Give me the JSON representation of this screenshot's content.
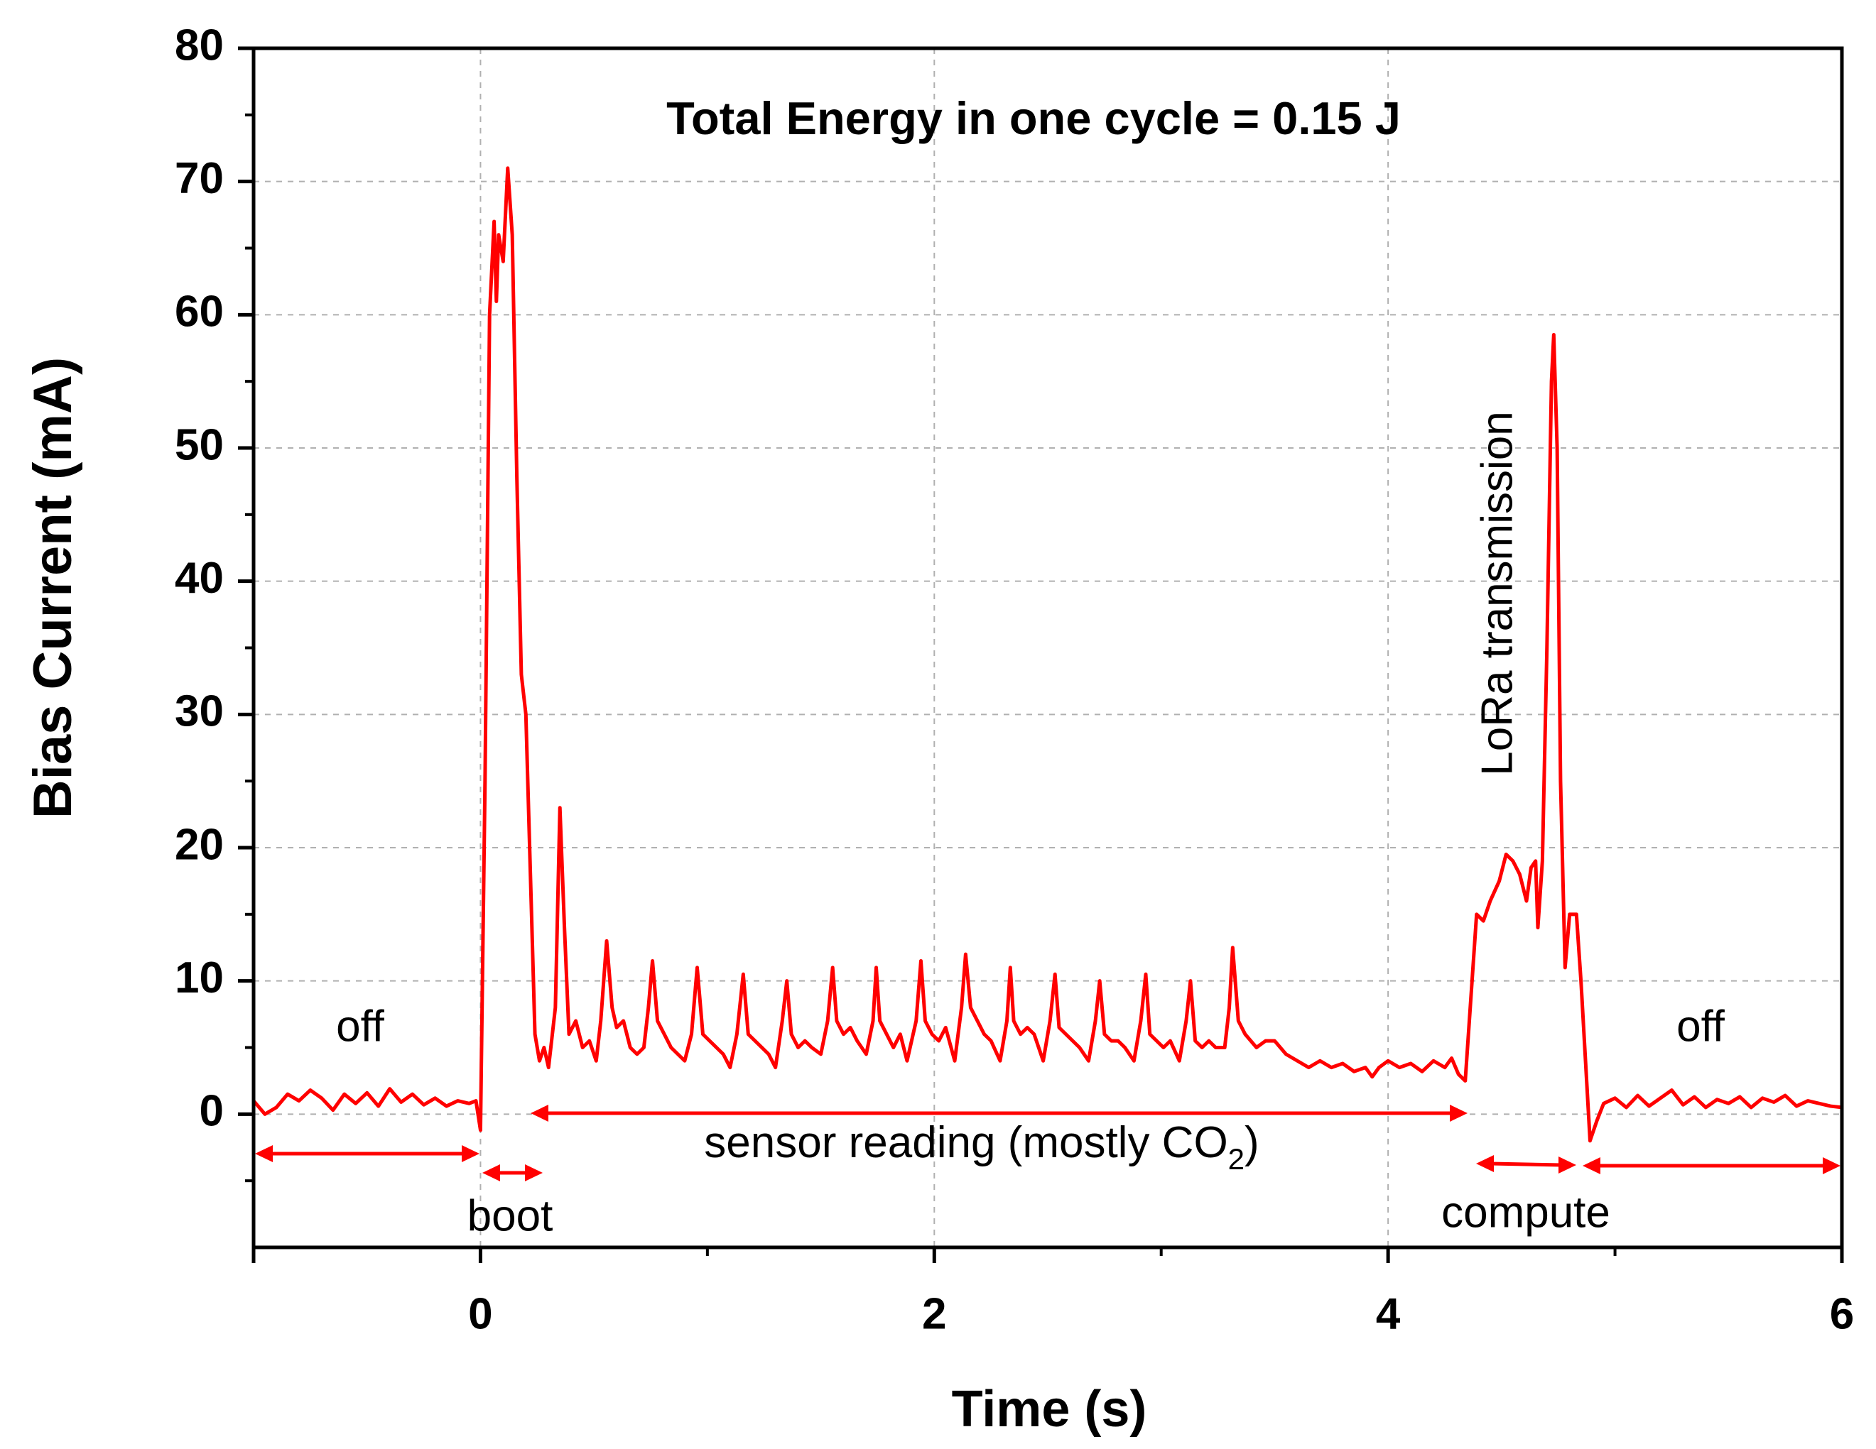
{
  "chart_data": {
    "type": "line",
    "title": "Total Energy in one cycle = 0.15 J",
    "x_label": "Time (s)",
    "y_label": "Bias Current (mA)",
    "annotations": {
      "off_left": "off",
      "boot": "boot",
      "sensor": [
        "sensor reading (mostly CO",
        "2",
        ")"
      ],
      "compute": "compute",
      "lora": "LoRa transmission",
      "off_right": "off"
    },
    "xlim": [
      -1,
      6
    ],
    "xticks": [
      0,
      2,
      4,
      6
    ],
    "ylim": [
      -10,
      80
    ],
    "yticks": [
      0,
      10,
      20,
      30,
      40,
      50,
      60,
      70,
      80
    ],
    "grid": true,
    "x": [
      -1,
      -0.95,
      -0.9,
      -0.85,
      -0.8,
      -0.75,
      -0.7,
      -0.65,
      -0.6,
      -0.55,
      -0.5,
      -0.45,
      -0.4,
      -0.35,
      -0.3,
      -0.25,
      -0.2,
      -0.15,
      -0.1,
      -0.05,
      -0.02,
      0,
      0.02,
      0.04,
      0.06,
      0.07,
      0.08,
      0.1,
      0.12,
      0.14,
      0.16,
      0.18,
      0.2,
      0.22,
      0.24,
      0.26,
      0.28,
      0.3,
      0.33,
      0.35,
      0.37,
      0.39,
      0.42,
      0.45,
      0.48,
      0.51,
      0.53,
      0.556,
      0.58,
      0.6,
      0.63,
      0.66,
      0.69,
      0.72,
      0.74,
      0.758,
      0.78,
      0.81,
      0.84,
      0.87,
      0.9,
      0.93,
      0.955,
      0.98,
      1.01,
      1.04,
      1.07,
      1.1,
      1.13,
      1.158,
      1.18,
      1.21,
      1.24,
      1.27,
      1.3,
      1.33,
      1.35,
      1.37,
      1.4,
      1.43,
      1.46,
      1.5,
      1.53,
      1.552,
      1.57,
      1.6,
      1.63,
      1.66,
      1.7,
      1.73,
      1.744,
      1.76,
      1.79,
      1.82,
      1.85,
      1.88,
      1.92,
      1.941,
      1.96,
      1.99,
      2.02,
      2.05,
      2.09,
      2.12,
      2.138,
      2.16,
      2.19,
      2.22,
      2.25,
      2.29,
      2.32,
      2.335,
      2.35,
      2.38,
      2.41,
      2.44,
      2.48,
      2.51,
      2.532,
      2.55,
      2.58,
      2.61,
      2.64,
      2.68,
      2.71,
      2.729,
      2.75,
      2.78,
      2.81,
      2.84,
      2.88,
      2.91,
      2.932,
      2.95,
      2.98,
      3.01,
      3.04,
      3.08,
      3.11,
      3.129,
      3.15,
      3.18,
      3.21,
      3.24,
      3.28,
      3.3,
      3.315,
      3.34,
      3.37,
      3.42,
      3.46,
      3.5,
      3.55,
      3.6,
      3.65,
      3.7,
      3.75,
      3.8,
      3.85,
      3.9,
      3.93,
      3.96,
      4.0,
      4.05,
      4.1,
      4.15,
      4.2,
      4.25,
      4.28,
      4.31,
      4.34,
      4.37,
      4.39,
      4.42,
      4.45,
      4.49,
      4.52,
      4.55,
      4.58,
      4.61,
      4.63,
      4.65,
      4.66,
      4.68,
      4.7,
      4.72,
      4.73,
      4.745,
      4.76,
      4.78,
      4.8,
      4.83,
      4.85,
      4.87,
      4.89,
      4.92,
      4.95,
      5.0,
      5.05,
      5.1,
      5.15,
      5.2,
      5.25,
      5.3,
      5.35,
      5.4,
      5.45,
      5.5,
      5.55,
      5.6,
      5.65,
      5.7,
      5.75,
      5.8,
      5.85,
      5.9,
      5.95,
      6.0
    ],
    "series": [
      {
        "name": "Bias Current",
        "color": "#ff0000",
        "values": [
          1,
          0,
          0.5,
          1.5,
          1,
          1.8,
          1.2,
          0.3,
          1.5,
          0.8,
          1.6,
          0.6,
          1.9,
          0.9,
          1.5,
          0.7,
          1.2,
          0.6,
          1,
          0.8,
          1,
          -1.2,
          25,
          60,
          67,
          61,
          66,
          64,
          71,
          66,
          48,
          33,
          30,
          18,
          6,
          4,
          5,
          3.5,
          8,
          23,
          14,
          6,
          7,
          5,
          5.5,
          4,
          7,
          13,
          8,
          6.5,
          7,
          5,
          4.5,
          5,
          8,
          11.5,
          7,
          6,
          5,
          4.5,
          4,
          6,
          11,
          6,
          5.5,
          5,
          4.5,
          3.5,
          6,
          10.5,
          6,
          5.5,
          5,
          4.5,
          3.5,
          7,
          10,
          6,
          5,
          5.5,
          5,
          4.5,
          7,
          11,
          7,
          6,
          6.5,
          5.5,
          4.5,
          7,
          11,
          7,
          6,
          5,
          6,
          4,
          7,
          11.5,
          7,
          6,
          5.5,
          6.5,
          4,
          8,
          12,
          8,
          7,
          6,
          5.5,
          4,
          7,
          11,
          7,
          6,
          6.5,
          6,
          4,
          7,
          10.5,
          6.5,
          6,
          5.5,
          5,
          4,
          7,
          10,
          6,
          5.5,
          5.5,
          5,
          4,
          7,
          10.5,
          6,
          5.5,
          5,
          5.5,
          4,
          7,
          10,
          5.5,
          5,
          5.5,
          5,
          5,
          8,
          12.5,
          7,
          6,
          5,
          5.5,
          5.5,
          4.5,
          4,
          3.5,
          4,
          3.5,
          3.8,
          3.2,
          3.5,
          2.8,
          3.5,
          4,
          3.5,
          3.8,
          3.2,
          4,
          3.5,
          4.2,
          3,
          2.5,
          10,
          15,
          14.5,
          16,
          17.5,
          19.5,
          19,
          18,
          16,
          18.5,
          19,
          14,
          19,
          35,
          55,
          58.5,
          50,
          25,
          11,
          15,
          15,
          10,
          4,
          -2,
          -0.5,
          0.8,
          1.2,
          0.5,
          1.4,
          0.6,
          1.2,
          1.8,
          0.7,
          1.3,
          0.5,
          1.1,
          0.8,
          1.3,
          0.5,
          1.2,
          0.9,
          1.4,
          0.6,
          1,
          0.8,
          0.6,
          0.5
        ]
      }
    ]
  }
}
